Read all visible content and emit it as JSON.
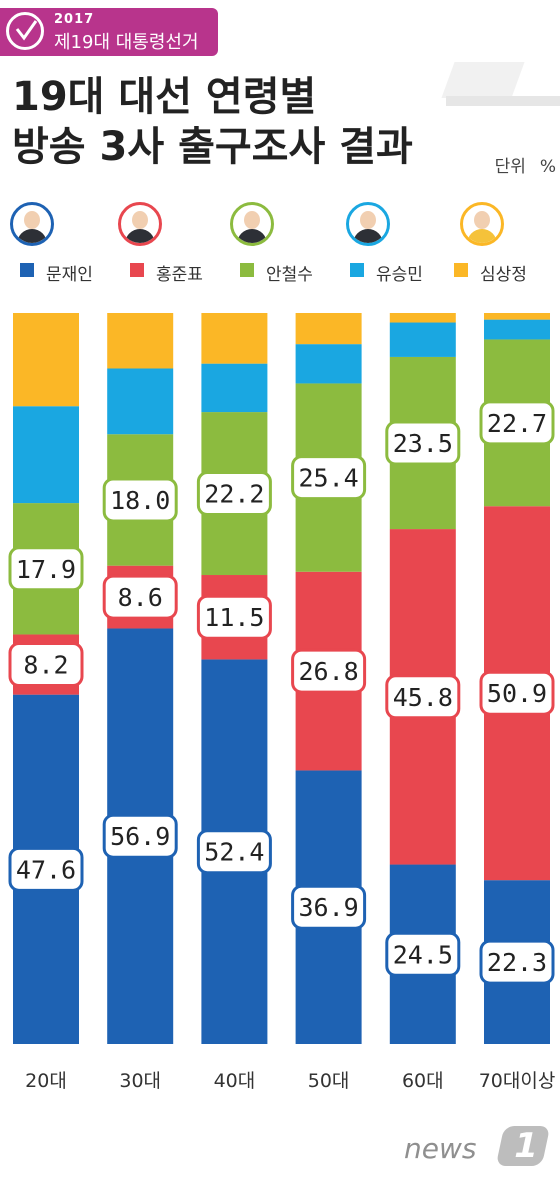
{
  "header": {
    "year": "2017",
    "event_text": "제19대 대통령선거",
    "title_line1": "19대 대선 연령별",
    "title_line2": "방송 3사 출구조사 결과",
    "unit_label": "단위",
    "unit_value": "%"
  },
  "legend": [
    {
      "name": "문재인",
      "color": "#1e62b3"
    },
    {
      "name": "홍준표",
      "color": "#e8474f"
    },
    {
      "name": "안철수",
      "color": "#8cbb3f"
    },
    {
      "name": "유승민",
      "color": "#1aa7e1"
    },
    {
      "name": "심상정",
      "color": "#fbb726"
    }
  ],
  "chart_data": {
    "type": "bar",
    "stacked": true,
    "title": "19대 대선 연령별 방송 3사 출구조사 결과",
    "unit": "%",
    "categories": [
      "20대",
      "30대",
      "40대",
      "50대",
      "60대",
      "70대이상"
    ],
    "series": [
      {
        "name": "문재인",
        "color": "#1e62b3",
        "values": [
          47.6,
          56.9,
          52.4,
          36.9,
          24.5,
          22.3
        ]
      },
      {
        "name": "홍준표",
        "color": "#e8474f",
        "values": [
          8.2,
          8.6,
          11.5,
          26.8,
          45.8,
          50.9
        ]
      },
      {
        "name": "안철수",
        "color": "#8cbb3f",
        "values": [
          17.9,
          18.0,
          22.2,
          25.4,
          23.5,
          22.7
        ]
      },
      {
        "name": "유승민",
        "color": "#1aa7e1",
        "values": [
          13.2,
          9.0,
          6.6,
          5.3,
          4.7,
          2.7
        ]
      },
      {
        "name": "심상정",
        "color": "#fbb726",
        "values": [
          12.7,
          7.6,
          6.9,
          4.2,
          1.3,
          0.9
        ]
      }
    ],
    "labeled_series": [
      "문재인",
      "홍준표",
      "안철수"
    ],
    "ylim": [
      0,
      100
    ]
  },
  "source": {
    "logo_word": "news",
    "logo_mark": "1"
  }
}
